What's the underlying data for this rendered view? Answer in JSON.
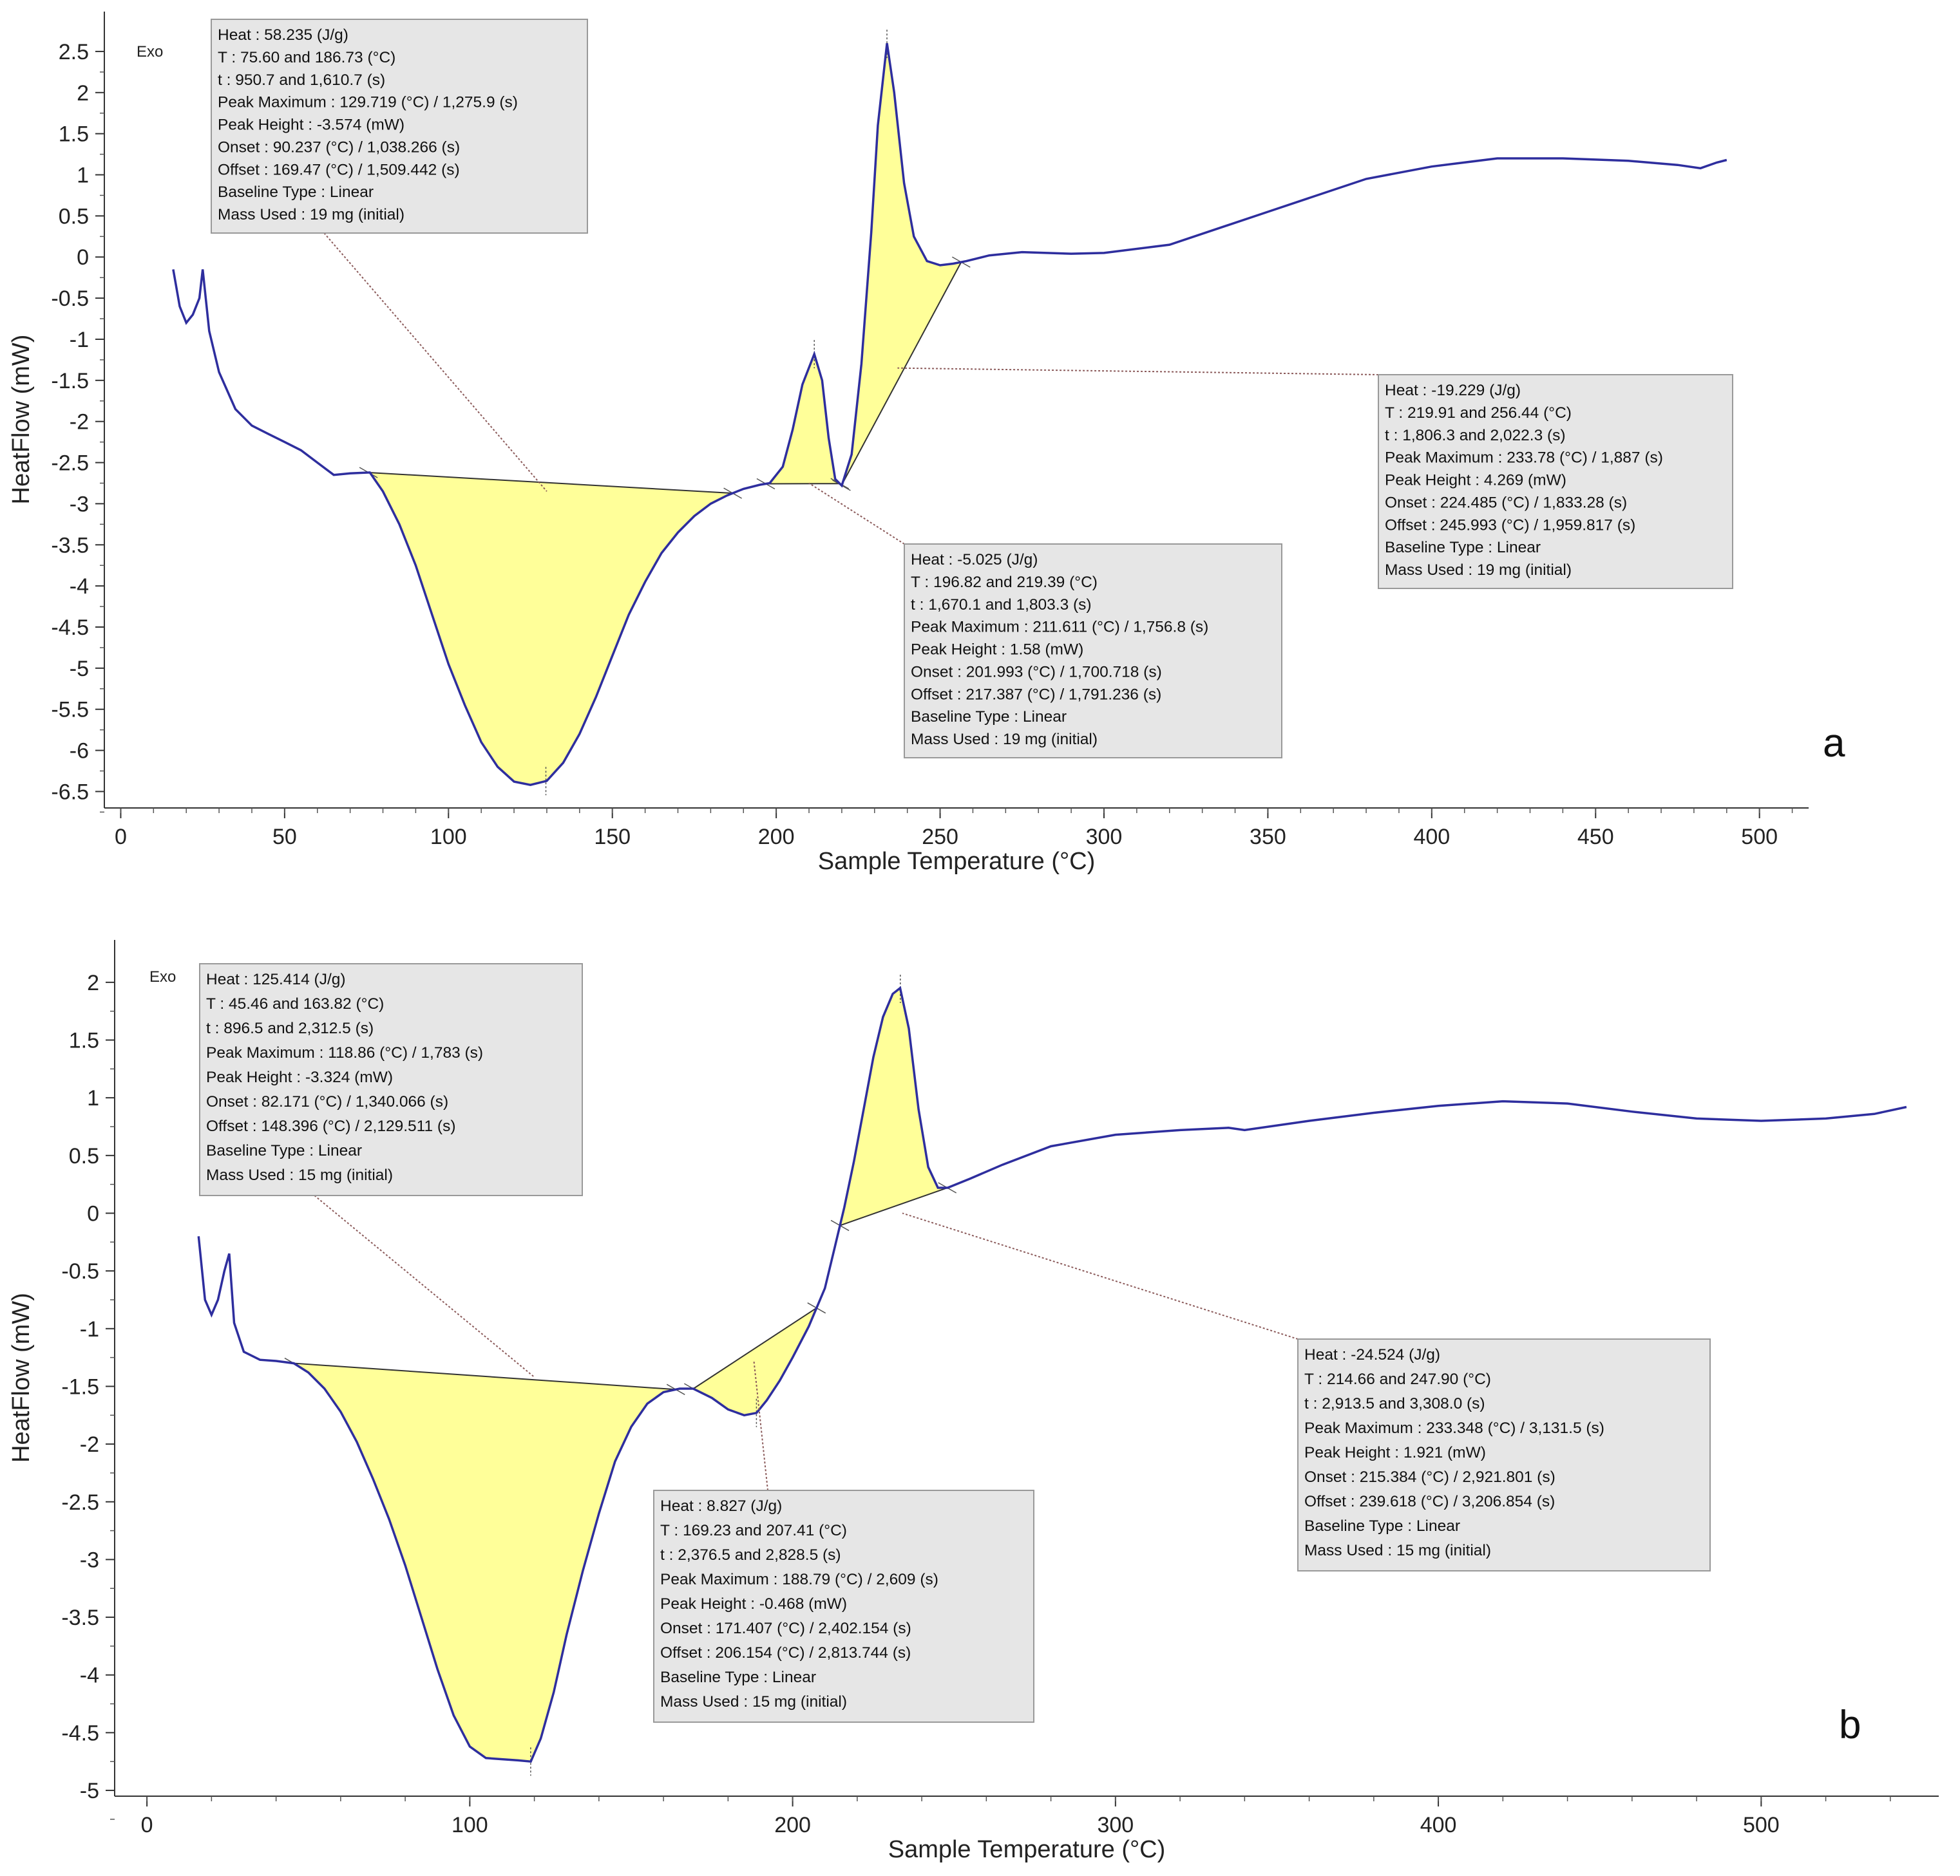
{
  "chart_data": [
    {
      "panel": "a",
      "type": "line",
      "xlabel": "Sample Temperature (°C)",
      "ylabel": "HeatFlow (mW)",
      "exo_label": "Exo",
      "xlim": [
        -5,
        515
      ],
      "ylim": [
        -6.7,
        2.75
      ],
      "x_ticks": [
        0,
        50,
        100,
        150,
        200,
        250,
        300,
        350,
        400,
        450,
        500
      ],
      "y_ticks": [
        2.5,
        2,
        1.5,
        1,
        0.5,
        0,
        -0.5,
        -1,
        -1.5,
        -2,
        -2.5,
        -3,
        -3.5,
        -4,
        -4.5,
        -5,
        -5.5,
        -6,
        -6.5
      ],
      "line_color": "#2e2e9e",
      "fill_color": "#ffff99",
      "series": [
        {
          "name": "HeatFlow",
          "x": [
            16,
            18,
            20,
            22,
            24,
            25,
            27,
            30,
            35,
            40,
            45,
            50,
            55,
            60,
            65,
            70,
            76,
            80,
            85,
            90,
            95,
            100,
            105,
            110,
            115,
            120,
            125,
            130,
            135,
            140,
            145,
            150,
            155,
            160,
            165,
            170,
            175,
            180,
            185,
            190,
            195,
            198,
            202,
            205,
            208,
            211.6,
            214,
            216,
            218,
            220,
            223,
            226,
            229,
            231,
            233.8,
            236,
            239,
            242,
            246,
            250,
            254,
            258,
            265,
            275,
            290,
            300,
            320,
            350,
            380,
            400,
            420,
            440,
            460,
            475,
            482,
            487,
            490
          ],
          "y": [
            -0.15,
            -0.6,
            -0.8,
            -0.7,
            -0.5,
            -0.15,
            -0.9,
            -1.4,
            -1.85,
            -2.05,
            -2.15,
            -2.25,
            -2.35,
            -2.5,
            -2.65,
            -2.63,
            -2.62,
            -2.85,
            -3.25,
            -3.75,
            -4.35,
            -4.95,
            -5.45,
            -5.9,
            -6.2,
            -6.38,
            -6.42,
            -6.37,
            -6.15,
            -5.8,
            -5.35,
            -4.85,
            -4.35,
            -3.95,
            -3.6,
            -3.35,
            -3.15,
            -3.0,
            -2.9,
            -2.82,
            -2.77,
            -2.75,
            -2.55,
            -2.1,
            -1.55,
            -1.18,
            -1.5,
            -2.2,
            -2.7,
            -2.78,
            -2.4,
            -1.3,
            0.3,
            1.6,
            2.6,
            2.0,
            0.9,
            0.25,
            -0.05,
            -0.1,
            -0.08,
            -0.05,
            0.02,
            0.06,
            0.04,
            0.05,
            0.15,
            0.55,
            0.95,
            1.1,
            1.2,
            1.2,
            1.17,
            1.12,
            1.08,
            1.15,
            1.18
          ]
        }
      ],
      "peaks": [
        {
          "range": [
            75.6,
            186.73
          ],
          "peak": 129.719,
          "label_x": 130,
          "label_y": -2.85
        },
        {
          "range": [
            196.82,
            219.39
          ],
          "peak": 211.611,
          "label_x": 210,
          "label_y": -2.75
        },
        {
          "range": [
            219.91,
            256.44
          ],
          "peak": 233.78,
          "label_x": 237,
          "label_y": -1.35
        }
      ],
      "annotations": [
        {
          "lines": [
            "Heat :  58.235 (J/g)",
            "T :  75.60 and 186.73 (°C)",
            "t :  950.7 and 1,610.7 (s)",
            "Peak Maximum :  129.719 (°C) / 1,275.9 (s)",
            "Peak Height :  -3.574 (mW)",
            "Onset :  90.237 (°C) / 1,038.266 (s)",
            "Offset :  169.47 (°C) / 1,509.442 (s)",
            "Baseline Type :  Linear",
            "Mass Used :  19 mg (initial)"
          ]
        },
        {
          "lines": [
            "Heat :  -5.025 (J/g)",
            "T :  196.82 and 219.39 (°C)",
            "t :  1,670.1 and 1,803.3 (s)",
            "Peak Maximum :  211.611 (°C) / 1,756.8 (s)",
            "Peak Height :  1.58 (mW)",
            "Onset :  201.993 (°C) / 1,700.718 (s)",
            "Offset :  217.387 (°C) / 1,791.236 (s)",
            "Baseline Type :  Linear",
            "Mass Used :  19 mg (initial)"
          ]
        },
        {
          "lines": [
            "Heat :  -19.229 (J/g)",
            "T :  219.91 and 256.44 (°C)",
            "t :  1,806.3 and 2,022.3 (s)",
            "Peak Maximum :  233.78 (°C) / 1,887 (s)",
            "Peak Height :  4.269 (mW)",
            "Onset :  224.485 (°C) / 1,833.28 (s)",
            "Offset :  245.993 (°C) / 1,959.817 (s)",
            "Baseline Type :  Linear",
            "Mass Used :  19 mg (initial)"
          ]
        }
      ]
    },
    {
      "panel": "b",
      "type": "line",
      "xlabel": "Sample Temperature (°C)",
      "ylabel": "HeatFlow (mW)",
      "exo_label": "Exo",
      "xlim": [
        -10,
        555
      ],
      "ylim": [
        -5.05,
        2.2
      ],
      "x_ticks": [
        0,
        100,
        200,
        300,
        400,
        500
      ],
      "y_ticks": [
        2,
        1.5,
        1,
        0.5,
        0,
        -0.5,
        -1,
        -1.5,
        -2,
        -2.5,
        -3,
        -3.5,
        -4,
        -4.5,
        -5
      ],
      "line_color": "#2e2e9e",
      "fill_color": "#ffff99",
      "series": [
        {
          "name": "HeatFlow",
          "x": [
            16,
            18,
            20,
            22,
            24,
            25.5,
            27,
            30,
            35,
            40,
            45.5,
            50,
            55,
            60,
            65,
            70,
            75,
            80,
            85,
            90,
            95,
            100,
            105,
            110,
            115,
            118.9,
            122,
            126,
            130,
            135,
            140,
            145,
            150,
            155,
            160,
            165,
            169.2,
            175,
            180,
            185,
            188.8,
            192,
            196,
            200,
            205,
            210,
            213,
            216,
            219,
            222,
            225,
            228,
            231,
            233.3,
            236,
            239,
            242,
            245,
            248,
            255,
            265,
            280,
            300,
            320,
            335,
            340,
            360,
            380,
            400,
            420,
            440,
            460,
            480,
            500,
            520,
            535,
            545
          ],
          "y": [
            -0.2,
            -0.75,
            -0.88,
            -0.75,
            -0.5,
            -0.35,
            -0.95,
            -1.2,
            -1.27,
            -1.28,
            -1.3,
            -1.38,
            -1.52,
            -1.72,
            -1.98,
            -2.3,
            -2.65,
            -3.05,
            -3.5,
            -3.95,
            -4.35,
            -4.62,
            -4.72,
            -4.73,
            -4.74,
            -4.75,
            -4.55,
            -4.15,
            -3.65,
            -3.1,
            -2.6,
            -2.15,
            -1.85,
            -1.65,
            -1.55,
            -1.52,
            -1.52,
            -1.6,
            -1.7,
            -1.75,
            -1.73,
            -1.62,
            -1.45,
            -1.25,
            -0.98,
            -0.65,
            -0.3,
            0.05,
            0.45,
            0.9,
            1.35,
            1.7,
            1.9,
            1.95,
            1.6,
            0.9,
            0.4,
            0.22,
            0.22,
            0.3,
            0.42,
            0.58,
            0.68,
            0.72,
            0.74,
            0.72,
            0.8,
            0.87,
            0.93,
            0.97,
            0.95,
            0.88,
            0.82,
            0.8,
            0.82,
            0.86,
            0.92
          ]
        }
      ],
      "peaks": [
        {
          "range": [
            45.46,
            163.82
          ],
          "peak": 118.86,
          "label_x": 120,
          "label_y": -1.42
        },
        {
          "range": [
            169.23,
            207.41
          ],
          "peak": 188.79,
          "label_x": 188,
          "label_y": -1.28
        },
        {
          "range": [
            214.66,
            247.9
          ],
          "peak": 233.348,
          "label_x": 234,
          "label_y": 0.0
        }
      ],
      "annotations": [
        {
          "lines": [
            "Heat :  125.414 (J/g)",
            "T :  45.46 and 163.82 (°C)",
            "t :  896.5 and 2,312.5 (s)",
            "Peak Maximum :  118.86 (°C) / 1,783 (s)",
            "Peak Height :  -3.324 (mW)",
            "Onset :  82.171 (°C) / 1,340.066 (s)",
            "Offset :  148.396 (°C) / 2,129.511 (s)",
            "Baseline Type :  Linear",
            "Mass Used :  15 mg (initial)"
          ]
        },
        {
          "lines": [
            "Heat :  8.827 (J/g)",
            "T :  169.23 and 207.41 (°C)",
            "t :  2,376.5 and 2,828.5 (s)",
            "Peak Maximum :  188.79 (°C) / 2,609 (s)",
            "Peak Height :  -0.468 (mW)",
            "Onset :  171.407 (°C) / 2,402.154 (s)",
            "Offset :  206.154 (°C) / 2,813.744 (s)",
            "Baseline Type :  Linear",
            "Mass Used :  15 mg (initial)"
          ]
        },
        {
          "lines": [
            "Heat :  -24.524 (J/g)",
            "T :  214.66 and 247.90 (°C)",
            "t :  2,913.5 and 3,308.0 (s)",
            "Peak Maximum :  233.348 (°C) / 3,131.5 (s)",
            "Peak Height :  1.921 (mW)",
            "Onset :  215.384 (°C) / 2,921.801 (s)",
            "Offset :  239.618 (°C) / 3,206.854 (s)",
            "Baseline Type :  Linear",
            "Mass Used :  15 mg (initial)"
          ]
        }
      ]
    }
  ]
}
